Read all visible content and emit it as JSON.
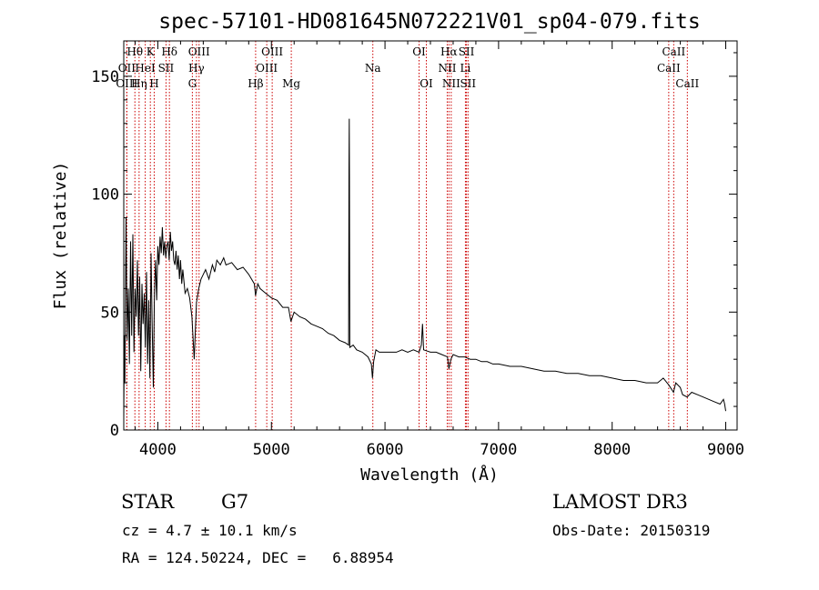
{
  "chart_data": {
    "type": "line",
    "title": "spec-57101-HD081645N072221V01_sp04-079.fits",
    "xlabel": "Wavelength (Å)",
    "ylabel": "Flux (relative)",
    "xlim": [
      3700,
      9100
    ],
    "ylim": [
      0,
      165
    ],
    "x_ticks": [
      4000,
      5000,
      6000,
      7000,
      8000,
      9000
    ],
    "x_tick_labels": [
      "4000",
      "5000",
      "6000",
      "7000",
      "8000",
      "9000"
    ],
    "y_ticks": [
      0,
      50,
      100,
      150
    ],
    "y_tick_labels": [
      "0",
      "50",
      "100",
      "150"
    ],
    "grid": false,
    "series": [
      {
        "name": "spectrum",
        "color": "#000000",
        "points": [
          [
            3700,
            5
          ],
          [
            3705,
            40
          ],
          [
            3710,
            20
          ],
          [
            3720,
            90
          ],
          [
            3730,
            38
          ],
          [
            3740,
            60
          ],
          [
            3750,
            28
          ],
          [
            3760,
            80
          ],
          [
            3770,
            40
          ],
          [
            3780,
            83
          ],
          [
            3790,
            33
          ],
          [
            3800,
            60
          ],
          [
            3810,
            48
          ],
          [
            3820,
            72
          ],
          [
            3830,
            40
          ],
          [
            3840,
            65
          ],
          [
            3850,
            25
          ],
          [
            3860,
            62
          ],
          [
            3870,
            45
          ],
          [
            3880,
            58
          ],
          [
            3890,
            35
          ],
          [
            3900,
            67
          ],
          [
            3910,
            28
          ],
          [
            3920,
            55
          ],
          [
            3930,
            22
          ],
          [
            3940,
            75
          ],
          [
            3950,
            45
          ],
          [
            3960,
            18
          ],
          [
            3970,
            58
          ],
          [
            3980,
            72
          ],
          [
            3990,
            55
          ],
          [
            4000,
            78
          ],
          [
            4010,
            70
          ],
          [
            4020,
            82
          ],
          [
            4030,
            75
          ],
          [
            4040,
            86
          ],
          [
            4050,
            74
          ],
          [
            4060,
            80
          ],
          [
            4070,
            73
          ],
          [
            4080,
            78
          ],
          [
            4090,
            80
          ],
          [
            4100,
            72
          ],
          [
            4110,
            84
          ],
          [
            4120,
            76
          ],
          [
            4130,
            80
          ],
          [
            4140,
            72
          ],
          [
            4150,
            70
          ],
          [
            4160,
            76
          ],
          [
            4170,
            68
          ],
          [
            4180,
            74
          ],
          [
            4190,
            64
          ],
          [
            4200,
            72
          ],
          [
            4210,
            62
          ],
          [
            4220,
            68
          ],
          [
            4240,
            58
          ],
          [
            4260,
            60
          ],
          [
            4280,
            56
          ],
          [
            4300,
            48
          ],
          [
            4320,
            30
          ],
          [
            4340,
            54
          ],
          [
            4360,
            60
          ],
          [
            4380,
            64
          ],
          [
            4400,
            66
          ],
          [
            4420,
            68
          ],
          [
            4450,
            64
          ],
          [
            4480,
            70
          ],
          [
            4500,
            67
          ],
          [
            4520,
            72
          ],
          [
            4550,
            70
          ],
          [
            4580,
            73
          ],
          [
            4600,
            70
          ],
          [
            4650,
            71
          ],
          [
            4700,
            68
          ],
          [
            4750,
            69
          ],
          [
            4800,
            66
          ],
          [
            4850,
            62
          ],
          [
            4860,
            57
          ],
          [
            4880,
            62
          ],
          [
            4900,
            60
          ],
          [
            4950,
            58
          ],
          [
            5000,
            56
          ],
          [
            5050,
            55
          ],
          [
            5100,
            52
          ],
          [
            5150,
            52
          ],
          [
            5172,
            46
          ],
          [
            5200,
            50
          ],
          [
            5250,
            48
          ],
          [
            5300,
            47
          ],
          [
            5350,
            45
          ],
          [
            5400,
            44
          ],
          [
            5450,
            43
          ],
          [
            5500,
            41
          ],
          [
            5550,
            40
          ],
          [
            5600,
            38
          ],
          [
            5650,
            37
          ],
          [
            5680,
            36
          ],
          [
            5683,
            110
          ],
          [
            5685,
            132
          ],
          [
            5687,
            108
          ],
          [
            5690,
            35
          ],
          [
            5720,
            36
          ],
          [
            5750,
            34
          ],
          [
            5800,
            33
          ],
          [
            5850,
            31
          ],
          [
            5880,
            28
          ],
          [
            5890,
            22
          ],
          [
            5900,
            29
          ],
          [
            5920,
            34
          ],
          [
            5950,
            33
          ],
          [
            6000,
            33
          ],
          [
            6050,
            33
          ],
          [
            6100,
            33
          ],
          [
            6150,
            34
          ],
          [
            6200,
            33
          ],
          [
            6250,
            34
          ],
          [
            6300,
            33
          ],
          [
            6320,
            36
          ],
          [
            6330,
            45
          ],
          [
            6340,
            34
          ],
          [
            6400,
            33
          ],
          [
            6450,
            33
          ],
          [
            6500,
            32
          ],
          [
            6550,
            31
          ],
          [
            6563,
            26
          ],
          [
            6580,
            30
          ],
          [
            6600,
            32
          ],
          [
            6650,
            31
          ],
          [
            6700,
            31
          ],
          [
            6750,
            30
          ],
          [
            6800,
            30
          ],
          [
            6850,
            29
          ],
          [
            6900,
            29
          ],
          [
            6950,
            28
          ],
          [
            7000,
            28
          ],
          [
            7100,
            27
          ],
          [
            7200,
            27
          ],
          [
            7300,
            26
          ],
          [
            7400,
            25
          ],
          [
            7500,
            25
          ],
          [
            7600,
            24
          ],
          [
            7700,
            24
          ],
          [
            7800,
            23
          ],
          [
            7900,
            23
          ],
          [
            8000,
            22
          ],
          [
            8100,
            21
          ],
          [
            8200,
            21
          ],
          [
            8300,
            20
          ],
          [
            8400,
            20
          ],
          [
            8450,
            22
          ],
          [
            8500,
            19
          ],
          [
            8540,
            16
          ],
          [
            8560,
            20
          ],
          [
            8600,
            18
          ],
          [
            8620,
            15
          ],
          [
            8660,
            14
          ],
          [
            8700,
            16
          ],
          [
            8750,
            15
          ],
          [
            8800,
            14
          ],
          [
            8850,
            13
          ],
          [
            8900,
            12
          ],
          [
            8950,
            11
          ],
          [
            8980,
            13
          ],
          [
            8990,
            11
          ],
          [
            9000,
            8
          ]
        ]
      }
    ],
    "line_markers": [
      {
        "label": "Hθ",
        "x": 3798,
        "row": 0
      },
      {
        "label": "OII",
        "x": 3727,
        "row": 1
      },
      {
        "label": "OIII",
        "x": 3727,
        "row": 2
      },
      {
        "label": "K",
        "x": 3934,
        "row": 0
      },
      {
        "label": "HeI",
        "x": 3889,
        "row": 1
      },
      {
        "label": "Hη",
        "x": 3835,
        "row": 2
      },
      {
        "label": "Hδ",
        "x": 4102,
        "row": 0
      },
      {
        "label": "SII",
        "x": 4072,
        "row": 1
      },
      {
        "label": "H",
        "x": 3968,
        "row": 2
      },
      {
        "label": "OIII",
        "x": 4363,
        "row": 0
      },
      {
        "label": "Hγ",
        "x": 4340,
        "row": 1
      },
      {
        "label": "G",
        "x": 4304,
        "row": 2
      },
      {
        "label": "OIII",
        "x": 5007,
        "row": 0
      },
      {
        "label": "OIII",
        "x": 4959,
        "row": 1
      },
      {
        "label": "Hβ",
        "x": 4861,
        "row": 2
      },
      {
        "label": "Mg",
        "x": 5175,
        "row": 2
      },
      {
        "label": "Na",
        "x": 5893,
        "row": 1
      },
      {
        "label": "OI",
        "x": 6300,
        "row": 0
      },
      {
        "label": "OI",
        "x": 6364,
        "row": 2
      },
      {
        "label": "Hα",
        "x": 6563,
        "row": 0
      },
      {
        "label": "NII",
        "x": 6548,
        "row": 1
      },
      {
        "label": "NII",
        "x": 6583,
        "row": 2
      },
      {
        "label": "SII",
        "x": 6717,
        "row": 0
      },
      {
        "label": "Li",
        "x": 6708,
        "row": 1
      },
      {
        "label": "SII",
        "x": 6731,
        "row": 2
      },
      {
        "label": "CaII",
        "x": 8542,
        "row": 0
      },
      {
        "label": "CaII",
        "x": 8498,
        "row": 1
      },
      {
        "label": "CaII",
        "x": 8662,
        "row": 2
      }
    ],
    "marker_color": "#cc0000"
  },
  "footer": {
    "object_type": "STAR",
    "subclass": "G7",
    "survey": "LAMOST DR3",
    "cz": "cz = 4.7 ± 10.1 km/s",
    "obs_date": "Obs-Date: 20150319",
    "coords": "RA = 124.50224, DEC =   6.88954"
  }
}
